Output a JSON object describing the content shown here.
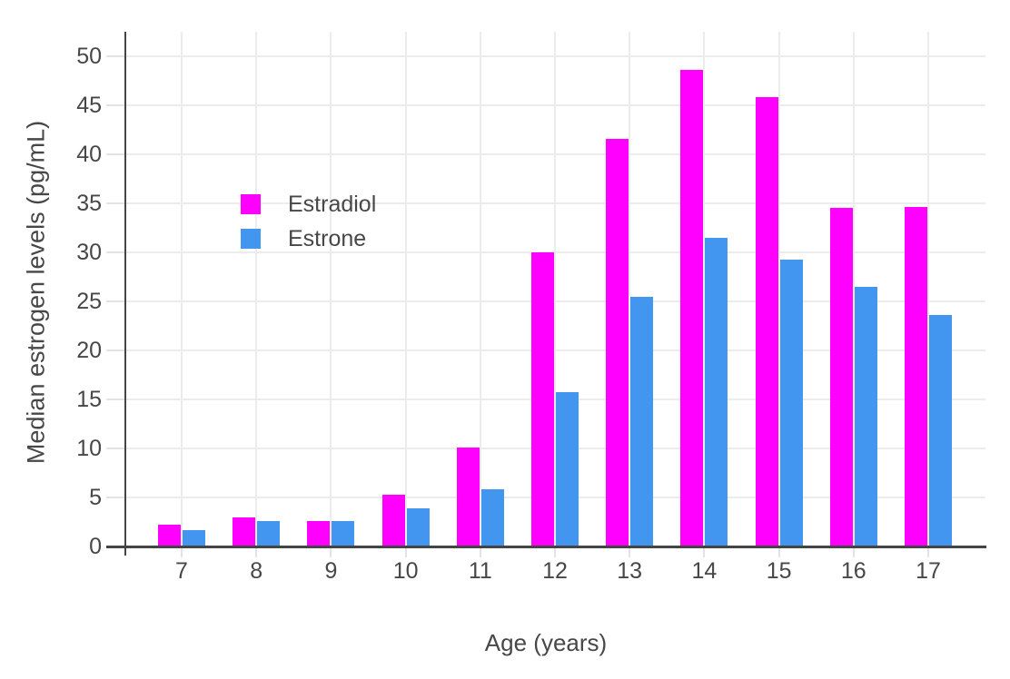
{
  "chart_data": {
    "type": "bar",
    "categories": [
      "7",
      "8",
      "9",
      "10",
      "11",
      "12",
      "13",
      "14",
      "15",
      "16",
      "17"
    ],
    "series": [
      {
        "name": "Estradiol",
        "color": "#FF00FF",
        "values": [
          2.2,
          3.0,
          2.6,
          5.3,
          10.1,
          30.0,
          41.6,
          48.6,
          45.8,
          34.5,
          34.6
        ]
      },
      {
        "name": "Estrone",
        "color": "#4296F0",
        "values": [
          1.7,
          2.6,
          2.6,
          3.9,
          5.8,
          15.7,
          25.5,
          31.5,
          29.3,
          26.5,
          23.6
        ]
      }
    ],
    "title": "",
    "xlabel": "Age (years)",
    "ylabel": "Median estrogen levels (pg/mL)",
    "ylim": [
      0,
      50
    ],
    "yticks": [
      0,
      5,
      10,
      15,
      20,
      25,
      30,
      35,
      40,
      45,
      50
    ],
    "grid": true,
    "legend_position": "inside-top-left",
    "colors": {
      "background": "#FFFFFF",
      "gridline": "#ECECEC",
      "tick_mark": "#E3E3E3",
      "axis_line": "#444444",
      "text": "#474747"
    }
  }
}
